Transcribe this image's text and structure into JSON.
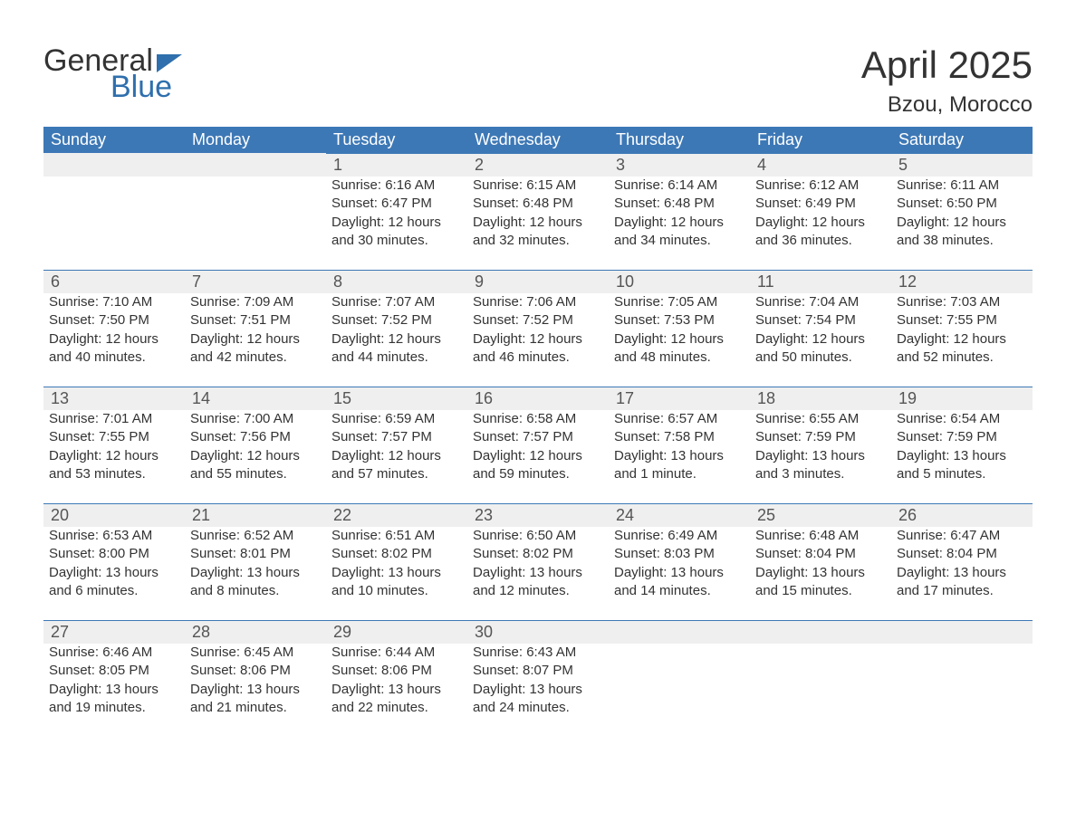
{
  "logo": {
    "text1": "General",
    "text2": "Blue",
    "accent_color": "#2f6fad"
  },
  "title": "April 2025",
  "location": "Bzou, Morocco",
  "colors": {
    "header_bg": "#3d78b6",
    "daynum_bg": "#efefef",
    "day_border": "#3d78b6",
    "text": "#333333"
  },
  "day_headers": [
    "Sunday",
    "Monday",
    "Tuesday",
    "Wednesday",
    "Thursday",
    "Friday",
    "Saturday"
  ],
  "weeks": [
    [
      null,
      null,
      {
        "n": "1",
        "sr": "Sunrise: 6:16 AM",
        "ss": "Sunset: 6:47 PM",
        "dl": "Daylight: 12 hours and 30 minutes."
      },
      {
        "n": "2",
        "sr": "Sunrise: 6:15 AM",
        "ss": "Sunset: 6:48 PM",
        "dl": "Daylight: 12 hours and 32 minutes."
      },
      {
        "n": "3",
        "sr": "Sunrise: 6:14 AM",
        "ss": "Sunset: 6:48 PM",
        "dl": "Daylight: 12 hours and 34 minutes."
      },
      {
        "n": "4",
        "sr": "Sunrise: 6:12 AM",
        "ss": "Sunset: 6:49 PM",
        "dl": "Daylight: 12 hours and 36 minutes."
      },
      {
        "n": "5",
        "sr": "Sunrise: 6:11 AM",
        "ss": "Sunset: 6:50 PM",
        "dl": "Daylight: 12 hours and 38 minutes."
      }
    ],
    [
      {
        "n": "6",
        "sr": "Sunrise: 7:10 AM",
        "ss": "Sunset: 7:50 PM",
        "dl": "Daylight: 12 hours and 40 minutes."
      },
      {
        "n": "7",
        "sr": "Sunrise: 7:09 AM",
        "ss": "Sunset: 7:51 PM",
        "dl": "Daylight: 12 hours and 42 minutes."
      },
      {
        "n": "8",
        "sr": "Sunrise: 7:07 AM",
        "ss": "Sunset: 7:52 PM",
        "dl": "Daylight: 12 hours and 44 minutes."
      },
      {
        "n": "9",
        "sr": "Sunrise: 7:06 AM",
        "ss": "Sunset: 7:52 PM",
        "dl": "Daylight: 12 hours and 46 minutes."
      },
      {
        "n": "10",
        "sr": "Sunrise: 7:05 AM",
        "ss": "Sunset: 7:53 PM",
        "dl": "Daylight: 12 hours and 48 minutes."
      },
      {
        "n": "11",
        "sr": "Sunrise: 7:04 AM",
        "ss": "Sunset: 7:54 PM",
        "dl": "Daylight: 12 hours and 50 minutes."
      },
      {
        "n": "12",
        "sr": "Sunrise: 7:03 AM",
        "ss": "Sunset: 7:55 PM",
        "dl": "Daylight: 12 hours and 52 minutes."
      }
    ],
    [
      {
        "n": "13",
        "sr": "Sunrise: 7:01 AM",
        "ss": "Sunset: 7:55 PM",
        "dl": "Daylight: 12 hours and 53 minutes."
      },
      {
        "n": "14",
        "sr": "Sunrise: 7:00 AM",
        "ss": "Sunset: 7:56 PM",
        "dl": "Daylight: 12 hours and 55 minutes."
      },
      {
        "n": "15",
        "sr": "Sunrise: 6:59 AM",
        "ss": "Sunset: 7:57 PM",
        "dl": "Daylight: 12 hours and 57 minutes."
      },
      {
        "n": "16",
        "sr": "Sunrise: 6:58 AM",
        "ss": "Sunset: 7:57 PM",
        "dl": "Daylight: 12 hours and 59 minutes."
      },
      {
        "n": "17",
        "sr": "Sunrise: 6:57 AM",
        "ss": "Sunset: 7:58 PM",
        "dl": "Daylight: 13 hours and 1 minute."
      },
      {
        "n": "18",
        "sr": "Sunrise: 6:55 AM",
        "ss": "Sunset: 7:59 PM",
        "dl": "Daylight: 13 hours and 3 minutes."
      },
      {
        "n": "19",
        "sr": "Sunrise: 6:54 AM",
        "ss": "Sunset: 7:59 PM",
        "dl": "Daylight: 13 hours and 5 minutes."
      }
    ],
    [
      {
        "n": "20",
        "sr": "Sunrise: 6:53 AM",
        "ss": "Sunset: 8:00 PM",
        "dl": "Daylight: 13 hours and 6 minutes."
      },
      {
        "n": "21",
        "sr": "Sunrise: 6:52 AM",
        "ss": "Sunset: 8:01 PM",
        "dl": "Daylight: 13 hours and 8 minutes."
      },
      {
        "n": "22",
        "sr": "Sunrise: 6:51 AM",
        "ss": "Sunset: 8:02 PM",
        "dl": "Daylight: 13 hours and 10 minutes."
      },
      {
        "n": "23",
        "sr": "Sunrise: 6:50 AM",
        "ss": "Sunset: 8:02 PM",
        "dl": "Daylight: 13 hours and 12 minutes."
      },
      {
        "n": "24",
        "sr": "Sunrise: 6:49 AM",
        "ss": "Sunset: 8:03 PM",
        "dl": "Daylight: 13 hours and 14 minutes."
      },
      {
        "n": "25",
        "sr": "Sunrise: 6:48 AM",
        "ss": "Sunset: 8:04 PM",
        "dl": "Daylight: 13 hours and 15 minutes."
      },
      {
        "n": "26",
        "sr": "Sunrise: 6:47 AM",
        "ss": "Sunset: 8:04 PM",
        "dl": "Daylight: 13 hours and 17 minutes."
      }
    ],
    [
      {
        "n": "27",
        "sr": "Sunrise: 6:46 AM",
        "ss": "Sunset: 8:05 PM",
        "dl": "Daylight: 13 hours and 19 minutes."
      },
      {
        "n": "28",
        "sr": "Sunrise: 6:45 AM",
        "ss": "Sunset: 8:06 PM",
        "dl": "Daylight: 13 hours and 21 minutes."
      },
      {
        "n": "29",
        "sr": "Sunrise: 6:44 AM",
        "ss": "Sunset: 8:06 PM",
        "dl": "Daylight: 13 hours and 22 minutes."
      },
      {
        "n": "30",
        "sr": "Sunrise: 6:43 AM",
        "ss": "Sunset: 8:07 PM",
        "dl": "Daylight: 13 hours and 24 minutes."
      },
      null,
      null,
      null
    ]
  ]
}
